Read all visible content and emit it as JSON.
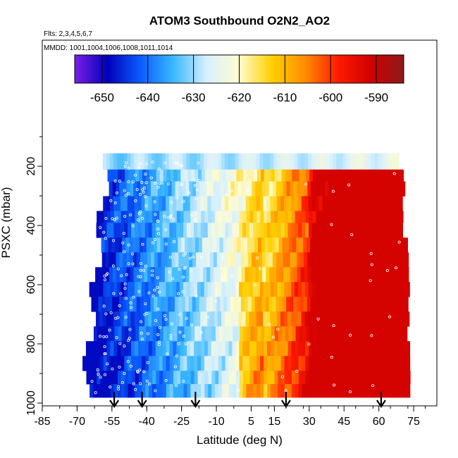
{
  "chart_data": {
    "type": "heatmap",
    "title": "ATOM3 Southbound O2N2_AO2",
    "annotations": [
      "Flts: 2,3,4,5,6,7",
      "MMDD: 1001,1004,1006,1008,1011,1014"
    ],
    "xlabel": "Latitude (deg N)",
    "ylabel": "PSXC (mbar)",
    "xlim": [
      -85,
      85
    ],
    "ylim": [
      1000,
      0
    ],
    "x_ticks": [
      "-85",
      "-70",
      "-55",
      "-40",
      "-25",
      "-10",
      "5",
      "15",
      "30",
      "45",
      "60",
      "75"
    ],
    "y_ticks": [
      "200",
      "400",
      "600",
      "800",
      "1000"
    ],
    "colorbar": {
      "range": [
        -656,
        -584
      ],
      "ticks": [
        "-650",
        "-640",
        "-630",
        "-620",
        "-610",
        "-600",
        "-590"
      ],
      "colors": [
        "#7b1fe8",
        "#0000b8",
        "#0a5cff",
        "#39b8ff",
        "#d6f0ff",
        "#fffcd0",
        "#ffd000",
        "#ff8c00",
        "#ff1a00",
        "#d00000",
        "#8b1a1a"
      ]
    },
    "field": {
      "latitude_bounds": [
        -65,
        72
      ],
      "pressure_levels": [
        175,
        230,
        270,
        320,
        370,
        410,
        460,
        510,
        560,
        610,
        660,
        710,
        760,
        810,
        860,
        910,
        955,
        1000
      ],
      "value_range": [
        -648,
        -592
      ]
    },
    "flight_profile_latitudes": [
      -54,
      -42,
      -19,
      20,
      61
    ]
  }
}
